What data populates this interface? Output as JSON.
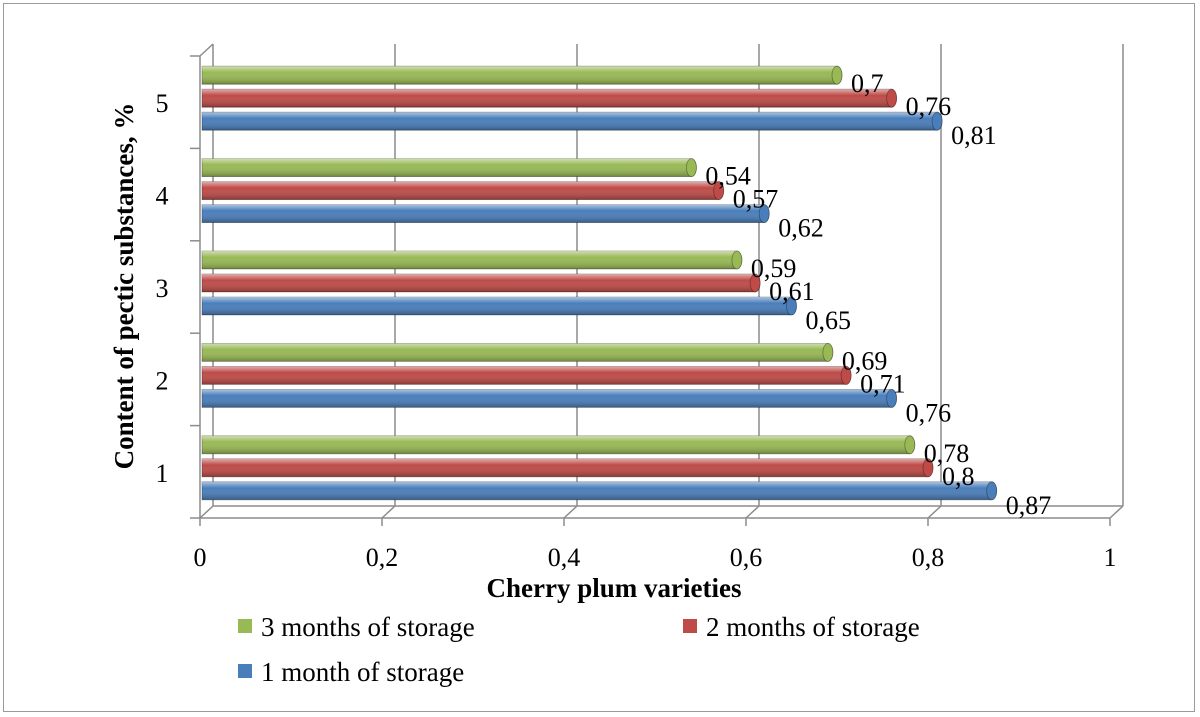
{
  "chart_data": {
    "type": "bar",
    "orientation": "horizontal",
    "style": "3d-cylinder",
    "categories": [
      "1",
      "2",
      "3",
      "4",
      "5"
    ],
    "series": [
      {
        "name": "1 month of storage",
        "color": "#4a7ebb",
        "values": [
          0.87,
          0.76,
          0.65,
          0.62,
          0.81
        ],
        "labels": [
          "0,87",
          "0,76",
          "0,65",
          "0,62",
          "0,81"
        ]
      },
      {
        "name": "2 months of storage",
        "color": "#be4b48",
        "values": [
          0.8,
          0.71,
          0.61,
          0.57,
          0.76
        ],
        "labels": [
          "0,8",
          "0,71",
          "0,61",
          "0,57",
          "0,76"
        ]
      },
      {
        "name": "3 months of storage",
        "color": "#98b954",
        "values": [
          0.78,
          0.69,
          0.59,
          0.54,
          0.7
        ],
        "labels": [
          "0,78",
          "0,69",
          "0,59",
          "0,54",
          "0,7"
        ]
      }
    ],
    "xlim": [
      0,
      1
    ],
    "x_ticks": [
      0,
      0.2,
      0.4,
      0.6,
      0.8,
      1
    ],
    "x_tick_labels": [
      "0",
      "0,2",
      "0,4",
      "0,6",
      "0,8",
      "1"
    ],
    "xlabel": "Cherry plum varieties",
    "ylabel": "Content of pectic substances, %",
    "grid": true,
    "legend_position": "bottom",
    "legend_order": [
      "3 months of storage",
      "2 months of storage",
      "1 month of storage"
    ]
  }
}
